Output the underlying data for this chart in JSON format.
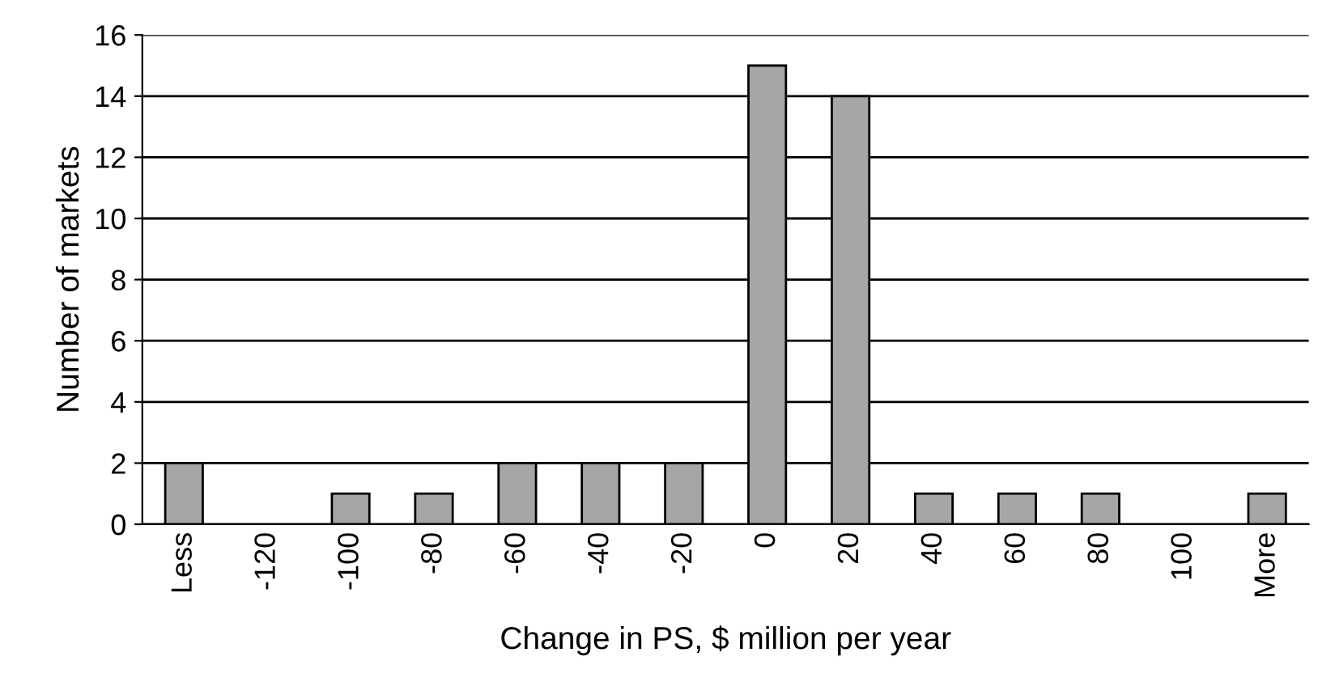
{
  "chart_data": {
    "type": "bar",
    "xlabel": "Change in PS, $ million per year",
    "ylabel": "Number of markets",
    "categories": [
      "Less",
      "-120",
      "-100",
      "-80",
      "-60",
      "-40",
      "-20",
      "0",
      "20",
      "40",
      "60",
      "80",
      "100",
      "More"
    ],
    "values": [
      2,
      0,
      1,
      1,
      2,
      2,
      2,
      15,
      14,
      1,
      1,
      1,
      0,
      1
    ],
    "color": "#a6a6a6",
    "ylim": [
      0,
      16
    ],
    "yticks": [
      0,
      2,
      4,
      6,
      8,
      10,
      12,
      14,
      16
    ],
    "grid": "y",
    "legend": false
  }
}
